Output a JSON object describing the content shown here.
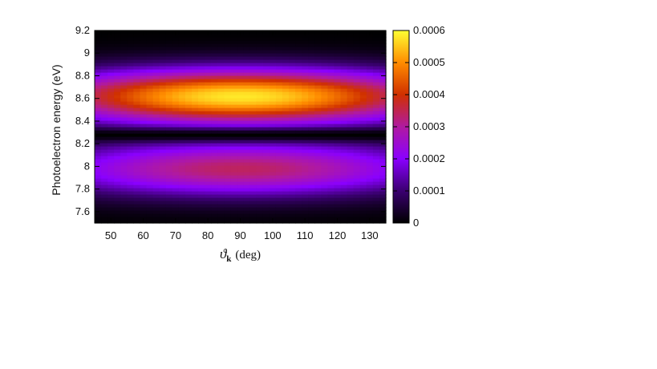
{
  "chart_data": {
    "type": "heatmap",
    "xlabel": {
      "symbol": "ϑ",
      "subscript": "k",
      "unit": "(deg)"
    },
    "ylabel": "Photoelectron energy (eV)",
    "xlim": [
      45,
      135
    ],
    "ylim": [
      7.5,
      9.2
    ],
    "x_ticks": [
      50,
      60,
      70,
      80,
      90,
      100,
      110,
      120,
      130
    ],
    "y_ticks": [
      "7.6",
      "7.8",
      "8",
      "8.2",
      "8.4",
      "8.6",
      "8.8",
      "9",
      "9.2"
    ],
    "y_tick_values": [
      7.6,
      7.8,
      8.0,
      8.2,
      8.4,
      8.6,
      8.8,
      9.0,
      9.2
    ],
    "colorbar": {
      "range": [
        0,
        0.0006
      ],
      "ticks": [
        "0",
        "0.0001",
        "0.0002",
        "0.0003",
        "0.0004",
        "0.0005",
        "0.0006"
      ],
      "tick_values": [
        0,
        0.0001,
        0.0002,
        0.0003,
        0.0004,
        0.0005,
        0.0006
      ],
      "palette": [
        "#000000",
        "#3a0070",
        "#8a00ff",
        "#b01aa0",
        "#d03000",
        "#ff8c00",
        "#ffff33"
      ]
    },
    "lobes": [
      {
        "center_x": 90,
        "center_y": 8.62,
        "peak": 0.00058,
        "sigma_x": 45,
        "sigma_y": 0.17
      },
      {
        "center_x": 90,
        "center_y": 7.98,
        "peak": 0.00034,
        "sigma_x": 45,
        "sigma_y": 0.17
      }
    ],
    "node_energy": 8.28,
    "grid": false,
    "legend": "colorbar-right"
  }
}
